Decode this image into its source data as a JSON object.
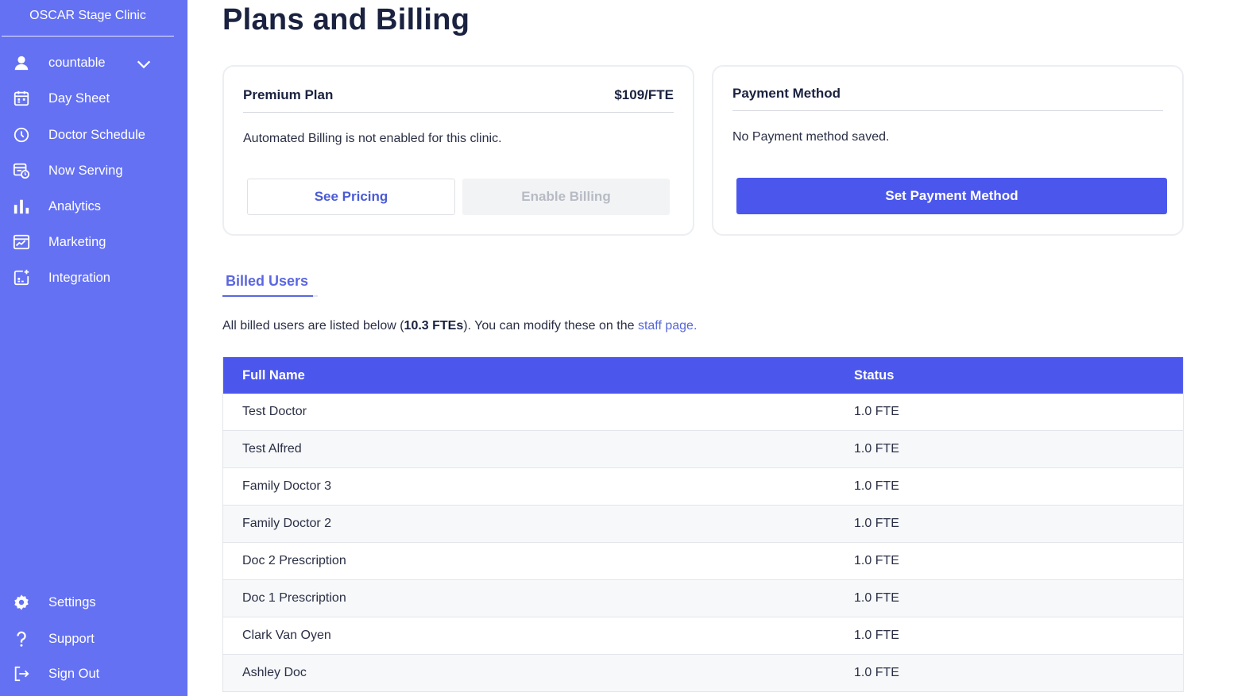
{
  "sidebar": {
    "clinic_name": "OSCAR Stage Clinic",
    "user": {
      "label": "countable",
      "icon": "user-icon"
    },
    "items": [
      {
        "label": "Day Sheet",
        "icon": "calendar-icon"
      },
      {
        "label": "Doctor Schedule",
        "icon": "clock-icon"
      },
      {
        "label": "Now Serving",
        "icon": "queue-icon"
      },
      {
        "label": "Analytics",
        "icon": "bar-chart-icon"
      },
      {
        "label": "Marketing",
        "icon": "marketing-icon"
      },
      {
        "label": "Integration",
        "icon": "integration-icon"
      }
    ],
    "bottom_items": [
      {
        "label": "Settings",
        "icon": "gear-icon"
      },
      {
        "label": "Support",
        "icon": "question-icon"
      },
      {
        "label": "Sign Out",
        "icon": "sign-out-icon"
      }
    ]
  },
  "page": {
    "title": "Plans and Billing"
  },
  "plan_card": {
    "name": "Premium Plan",
    "price": "$109/FTE",
    "message": "Automated Billing is not enabled for this clinic.",
    "see_pricing": "See Pricing",
    "enable_billing": "Enable Billing"
  },
  "payment_card": {
    "title": "Payment Method",
    "message": "No Payment method saved.",
    "set_payment": "Set Payment Method"
  },
  "billed_users": {
    "tab_label": "Billed Users",
    "info_prefix": "All billed users are listed below (",
    "info_total": "10.3 FTEs",
    "info_middle": "). You can modify these on the ",
    "info_link": "staff page.",
    "columns": [
      "Full Name",
      "Status"
    ],
    "rows": [
      {
        "name": "Test Doctor",
        "status": "1.0 FTE"
      },
      {
        "name": "Test Alfred",
        "status": "1.0 FTE"
      },
      {
        "name": "Family Doctor 3",
        "status": "1.0 FTE"
      },
      {
        "name": "Family Doctor 2",
        "status": "1.0 FTE"
      },
      {
        "name": "Doc 2 Prescription",
        "status": "1.0 FTE"
      },
      {
        "name": "Doc 1 Prescription",
        "status": "1.0 FTE"
      },
      {
        "name": "Clark Van Oyen",
        "status": "1.0 FTE"
      },
      {
        "name": "Ashley Doc",
        "status": "1.0 FTE"
      }
    ]
  },
  "colors": {
    "sidebar_bg": "#6471f3",
    "primary": "#4b57ec",
    "accent_text": "#5b67e0"
  }
}
